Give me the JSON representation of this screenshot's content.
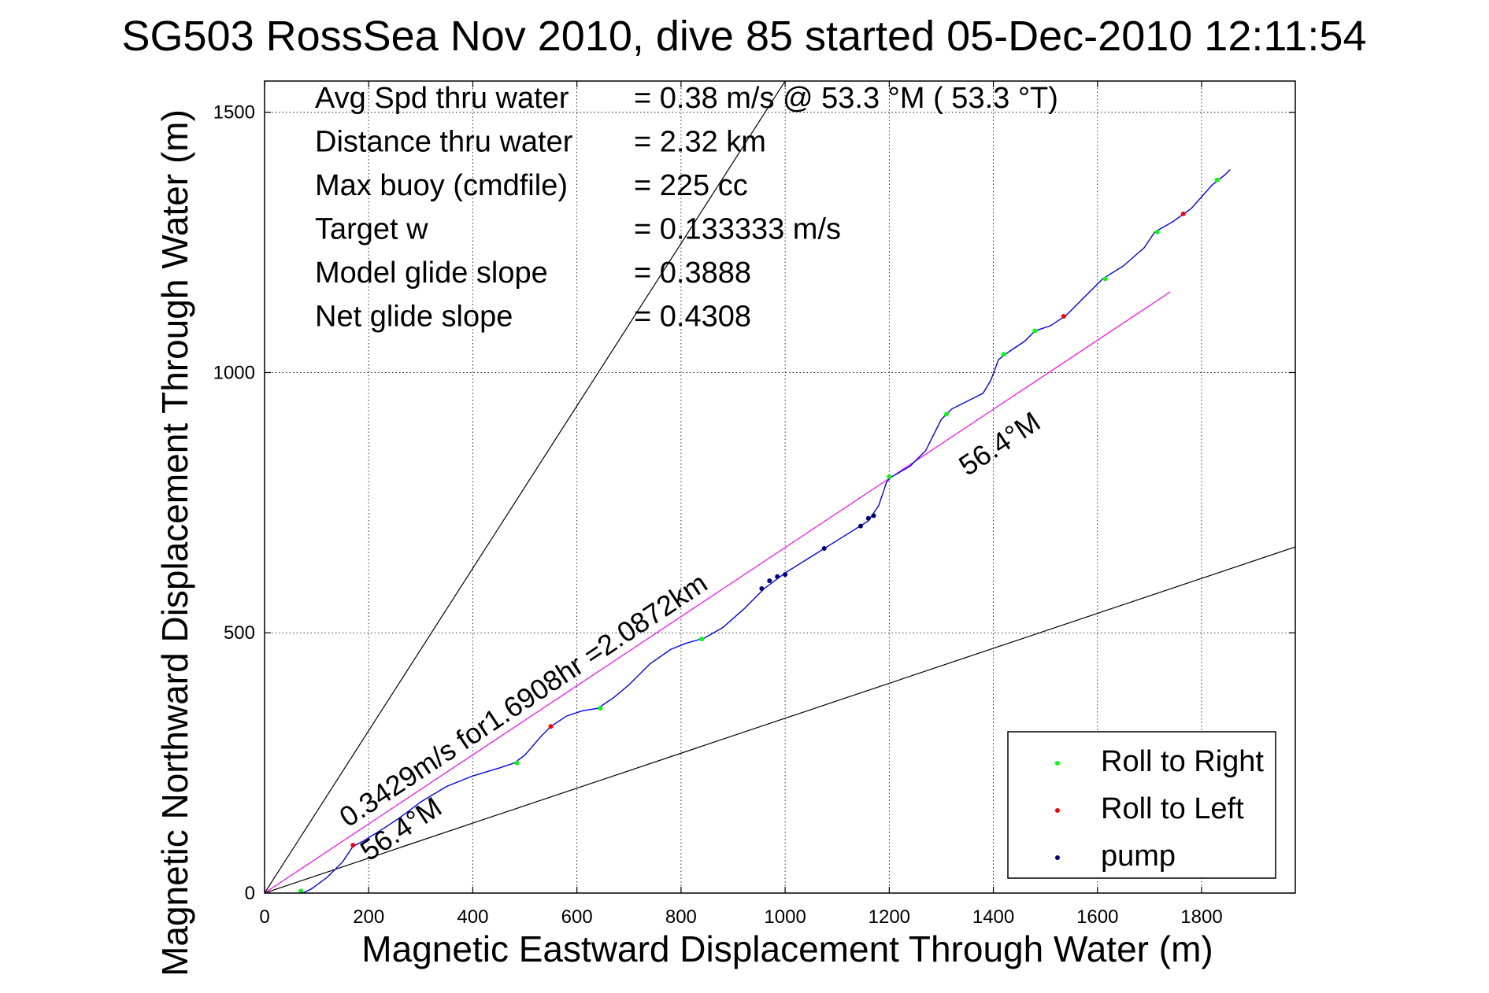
{
  "chart_data": {
    "type": "line",
    "title": "SG503 RossSea Nov 2010, dive 85 started 05-Dec-2010 12:11:54",
    "xlabel": "Magnetic Eastward Displacement Through Water (m)",
    "ylabel": "Magnetic Northward Displacement Through Water (m)",
    "xlim": [
      0,
      1980
    ],
    "ylim": [
      0,
      1560
    ],
    "xticks": [
      0,
      200,
      400,
      600,
      800,
      1000,
      1200,
      1400,
      1600,
      1800
    ],
    "yticks": [
      0,
      500,
      1000,
      1500
    ],
    "grid": true,
    "stats": [
      {
        "label": "Avg Spd thru water",
        "value": "=  0.38 m/s @  53.3 °M ( 53.3 °T)"
      },
      {
        "label": "Distance thru water",
        "value": "=  2.32 km"
      },
      {
        "label": "Max buoy (cmdfile)",
        "value": "= 225 cc"
      },
      {
        "label": "Target w",
        "value": "= 0.133333 m/s"
      },
      {
        "label": "Model glide slope",
        "value": "= 0.3888"
      },
      {
        "label": "Net glide slope",
        "value": "= 0.4308"
      }
    ],
    "annotations": [
      {
        "text": "0.3429m/s for1.6908hr =2.0872km",
        "x": 160,
        "y": 125
      },
      {
        "text": "56.4°M",
        "x": 200,
        "y": 60
      },
      {
        "text": "56.4°M",
        "x": 1350,
        "y": 800
      }
    ],
    "reference_lines": [
      {
        "name": "upper-envelope",
        "points": [
          [
            0,
            0
          ],
          [
            1000,
            1560
          ]
        ],
        "color": "#000000"
      },
      {
        "name": "lower-envelope",
        "points": [
          [
            0,
            0
          ],
          [
            1980,
            665
          ]
        ],
        "color": "#000000"
      },
      {
        "name": "net-heading",
        "points": [
          [
            0,
            0
          ],
          [
            1740,
            1155
          ]
        ],
        "color": "#ff00ff"
      }
    ],
    "series": [
      {
        "role": "track",
        "color": "#0000ff",
        "points": [
          [
            0,
            0
          ],
          [
            25,
            -2
          ],
          [
            60,
            -6
          ],
          [
            90,
            8
          ],
          [
            120,
            30
          ],
          [
            150,
            60
          ],
          [
            170,
            90
          ],
          [
            190,
            100
          ],
          [
            230,
            125
          ],
          [
            260,
            145
          ],
          [
            300,
            175
          ],
          [
            350,
            205
          ],
          [
            400,
            225
          ],
          [
            450,
            240
          ],
          [
            480,
            250
          ],
          [
            500,
            265
          ],
          [
            530,
            300
          ],
          [
            550,
            320
          ],
          [
            580,
            340
          ],
          [
            610,
            350
          ],
          [
            640,
            355
          ],
          [
            670,
            375
          ],
          [
            700,
            400
          ],
          [
            740,
            440
          ],
          [
            780,
            468
          ],
          [
            810,
            480
          ],
          [
            845,
            490
          ],
          [
            880,
            510
          ],
          [
            920,
            545
          ],
          [
            960,
            585
          ],
          [
            1000,
            615
          ],
          [
            1040,
            640
          ],
          [
            1080,
            665
          ],
          [
            1120,
            690
          ],
          [
            1160,
            715
          ],
          [
            1180,
            745
          ],
          [
            1195,
            790
          ],
          [
            1205,
            800
          ],
          [
            1240,
            820
          ],
          [
            1270,
            850
          ],
          [
            1300,
            910
          ],
          [
            1320,
            930
          ],
          [
            1350,
            945
          ],
          [
            1380,
            960
          ],
          [
            1395,
            985
          ],
          [
            1410,
            1025
          ],
          [
            1430,
            1040
          ],
          [
            1460,
            1060
          ],
          [
            1480,
            1080
          ],
          [
            1510,
            1090
          ],
          [
            1540,
            1110
          ],
          [
            1570,
            1140
          ],
          [
            1610,
            1180
          ],
          [
            1650,
            1205
          ],
          [
            1690,
            1240
          ],
          [
            1710,
            1270
          ],
          [
            1745,
            1290
          ],
          [
            1780,
            1315
          ],
          [
            1820,
            1360
          ],
          [
            1845,
            1380
          ],
          [
            1855,
            1390
          ]
        ]
      },
      {
        "name": "Roll to Right",
        "color": "#00ff00",
        "points": [
          [
            70,
            4
          ],
          [
            485,
            250
          ],
          [
            645,
            355
          ],
          [
            840,
            488
          ],
          [
            1200,
            800
          ],
          [
            1310,
            920
          ],
          [
            1420,
            1035
          ],
          [
            1480,
            1080
          ],
          [
            1615,
            1180
          ],
          [
            1715,
            1270
          ],
          [
            1830,
            1370
          ]
        ]
      },
      {
        "name": "Roll to Left",
        "color": "#ff0000",
        "points": [
          [
            170,
            92
          ],
          [
            550,
            320
          ],
          [
            1535,
            1108
          ],
          [
            1765,
            1305
          ]
        ]
      },
      {
        "name": "pump",
        "color": "#000080",
        "points": [
          [
            955,
            585
          ],
          [
            970,
            600
          ],
          [
            985,
            608
          ],
          [
            1000,
            612
          ],
          [
            1075,
            662
          ],
          [
            1145,
            705
          ],
          [
            1160,
            720
          ],
          [
            1170,
            725
          ]
        ]
      }
    ],
    "legend": {
      "placement": "bottom-right",
      "entries": [
        {
          "name": "Roll to Right",
          "color": "#00ff00"
        },
        {
          "name": "Roll to Left",
          "color": "#ff0000"
        },
        {
          "name": "pump",
          "color": "#000080"
        }
      ]
    }
  }
}
